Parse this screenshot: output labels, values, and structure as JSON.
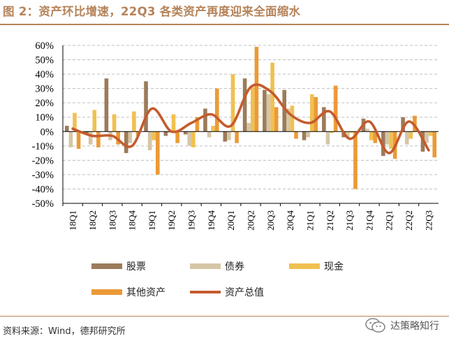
{
  "title": "图 2：资产环比增速，22Q3 各类资产再度迎来全面缩水",
  "source": "资料来源：Wind，德邦研究所",
  "watermark": {
    "text": "达策略知行",
    "icon": "wechat-icon"
  },
  "colors": {
    "title": "#b5835a",
    "stocks": "#9c7b5a",
    "bonds": "#d6c6a6",
    "cash": "#f0c051",
    "other": "#eb9a36",
    "total": "#c45b2c",
    "grid": "#bfbfbf"
  },
  "chart_data": {
    "type": "bar",
    "categories": [
      "18Q1",
      "18Q2",
      "18Q3",
      "18Q4",
      "19Q1",
      "19Q2",
      "19Q3",
      "19Q4",
      "20Q1",
      "20Q2",
      "20Q3",
      "20Q4",
      "21Q1",
      "21Q2",
      "21Q3",
      "21Q4",
      "22Q1",
      "22Q2",
      "22Q3"
    ],
    "tick_categories": [
      "18Q1",
      "18Q2",
      "18Q3",
      "18Q4",
      "19Q1",
      "19Q2",
      "19Q3",
      "19Q4",
      "20Q1",
      "20Q2",
      "20Q3",
      "20Q4",
      "21Q1",
      "21Q2",
      "21Q3",
      "21Q4",
      "22Q1",
      "22Q2",
      "22Q3"
    ],
    "y_ticks": [
      "-50%",
      "-40%",
      "-30%",
      "-20%",
      "-10%",
      "0%",
      "10%",
      "20%",
      "30%",
      "40%",
      "50%",
      "60%"
    ],
    "ylim": [
      -50,
      60
    ],
    "grid": true,
    "legend_position": "bottom",
    "series": [
      {
        "name": "股票",
        "kind": "bar",
        "values": [
          4,
          -2,
          37,
          -15,
          35,
          -3,
          -2,
          16,
          -7,
          37,
          29,
          29,
          -6,
          17,
          -4,
          9,
          -17,
          10,
          -14
        ]
      },
      {
        "name": "债券",
        "kind": "bar",
        "values": [
          -11,
          -9,
          -6,
          -8,
          -13,
          -1,
          -10,
          -4,
          -6,
          6,
          26,
          16,
          -4,
          -9,
          -4,
          2,
          -9,
          -9,
          -8
        ]
      },
      {
        "name": "现金",
        "kind": "bar",
        "values": [
          13,
          15,
          12,
          14,
          -6,
          12,
          -11,
          4,
          40,
          31,
          48,
          18,
          26,
          -1,
          -1,
          -6,
          -12,
          -5,
          -3
        ]
      },
      {
        "name": "其他资产",
        "kind": "bar",
        "values": [
          -12,
          -11,
          -9,
          -3,
          -30,
          -8,
          10,
          30,
          -8,
          59,
          17,
          -5,
          24,
          32,
          -40,
          -8,
          -19,
          11,
          -18
        ]
      },
      {
        "name": "资产总值",
        "kind": "line",
        "values": [
          2,
          -3,
          -3,
          -10,
          16,
          0,
          6,
          12,
          4,
          31,
          28,
          12,
          6,
          14,
          -5,
          7,
          -15,
          7,
          -13
        ]
      }
    ]
  }
}
